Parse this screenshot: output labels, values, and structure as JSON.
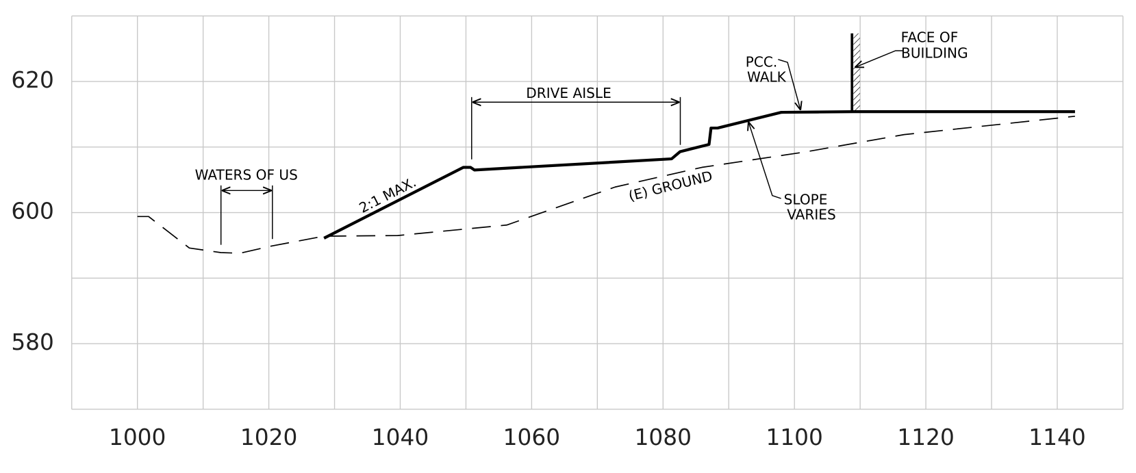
{
  "chart_data": {
    "type": "line",
    "xlim": [
      990,
      1150
    ],
    "ylim": [
      570,
      630
    ],
    "xticks": [
      1000,
      1020,
      1040,
      1060,
      1080,
      1100,
      1120,
      1140
    ],
    "yticks": [
      580,
      600,
      620
    ],
    "xgrid_minor": [
      990,
      1010,
      1030,
      1050,
      1070,
      1090,
      1110,
      1130,
      1150
    ],
    "ygrid_minor": [
      570,
      590,
      610,
      630
    ],
    "grid": true,
    "series": [
      {
        "color": "#000000",
        "width": 4,
        "dash": false,
        "x": [
          1028.4,
          1049.6,
          1050.7,
          1051.3,
          1081.3,
          1082.6,
          1087.0,
          1087.3,
          1088.3,
          1098.0,
          1109.0,
          1142.7
        ],
        "values": [
          596.1,
          606.9,
          606.9,
          606.5,
          608.2,
          609.3,
          610.4,
          612.9,
          612.9,
          615.3,
          615.4,
          615.4
        ]
      },
      {
        "color": "#000000",
        "width": 1.6,
        "dash": true,
        "x": [
          1000,
          1001.7,
          1007.9,
          1012.7,
          1015.6,
          1020.4,
          1028.4,
          1039.6,
          1056.2,
          1072.7,
          1085.9,
          1101.3,
          1116.7,
          1142.7
        ],
        "values": [
          599.4,
          599.4,
          594.6,
          593.9,
          593.8,
          594.9,
          596.4,
          596.5,
          598.1,
          603.9,
          606.9,
          609.2,
          611.9,
          614.7
        ]
      }
    ],
    "annotations": [
      "WATERS OF US",
      "DRIVE AISLE",
      "2:1 MAX.",
      "(E) GROUND",
      "PCC.",
      "WALK",
      "SLOPE",
      "VARIES",
      "FACE OF",
      "BUILDING"
    ]
  }
}
